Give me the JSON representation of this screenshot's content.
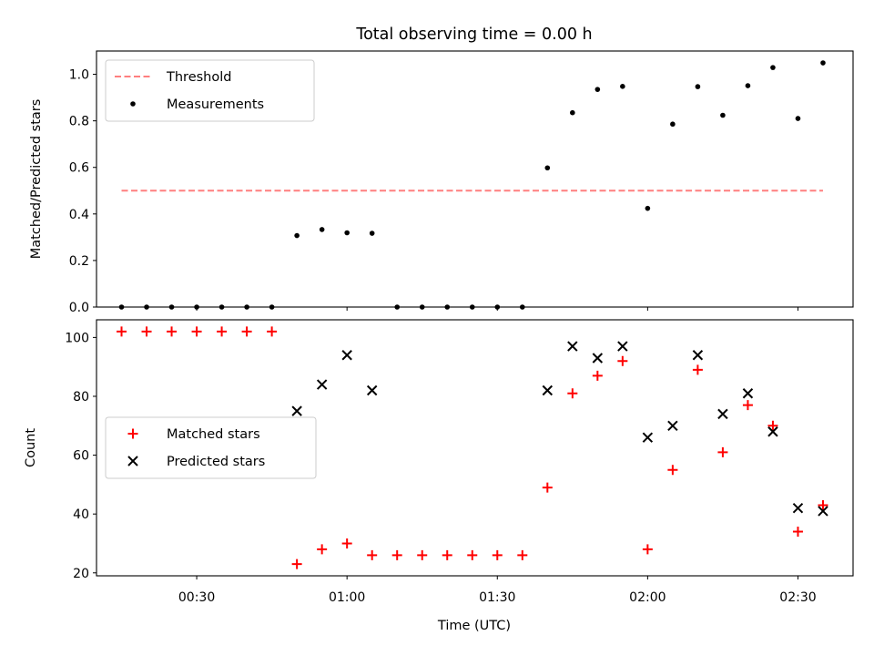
{
  "figure": {
    "title": "Total observing time = 0.00 h",
    "xlabel": "Time (UTC)"
  },
  "chart_data": [
    {
      "type": "scatter",
      "ylabel": "Matched/Predicted stars",
      "ylim": [
        0,
        1.1
      ],
      "yticks": [
        0.0,
        0.2,
        0.4,
        0.6,
        0.8,
        1.0
      ],
      "ytick_labels": [
        "0.0",
        "0.2",
        "0.4",
        "0.6",
        "0.8",
        "1.0"
      ],
      "x_range": [
        "00:10",
        "02:41"
      ],
      "legend": "upper-left",
      "series": [
        {
          "name": "Threshold",
          "kind": "dashed-line",
          "color": "#ff7f7f",
          "x": [
            "00:15",
            "02:35"
          ],
          "y": [
            0.5,
            0.5
          ]
        },
        {
          "name": "Measurements",
          "kind": "dot",
          "color": "#000000",
          "x": [
            "00:15",
            "00:20",
            "00:25",
            "00:30",
            "00:35",
            "00:40",
            "00:45",
            "00:50",
            "00:55",
            "01:00",
            "01:05",
            "01:10",
            "01:15",
            "01:20",
            "01:25",
            "01:30",
            "01:35",
            "01:40",
            "01:45",
            "01:50",
            "01:55",
            "02:00",
            "02:05",
            "02:10",
            "02:15",
            "02:20",
            "02:25",
            "02:30",
            "02:35"
          ],
          "y": [
            0,
            0,
            0,
            0,
            0,
            0,
            0,
            0.307,
            0.333,
            0.319,
            0.317,
            0,
            0,
            0,
            0,
            0,
            0,
            0.598,
            0.835,
            0.935,
            0.948,
            0.424,
            0.786,
            0.947,
            0.824,
            0.951,
            1.029,
            0.81,
            1.049
          ]
        }
      ]
    },
    {
      "type": "scatter",
      "ylabel": "Count",
      "ylim": [
        19,
        106
      ],
      "yticks": [
        20,
        40,
        60,
        80,
        100
      ],
      "ytick_labels": [
        "20",
        "40",
        "60",
        "80",
        "100"
      ],
      "x_range": [
        "00:10",
        "02:41"
      ],
      "xticks": [
        "00:30",
        "01:00",
        "01:30",
        "02:00",
        "02:30"
      ],
      "legend": "center-left",
      "series": [
        {
          "name": "Matched stars",
          "kind": "plus",
          "color": "#ff0000",
          "x": [
            "00:15",
            "00:20",
            "00:25",
            "00:30",
            "00:35",
            "00:40",
            "00:45",
            "00:50",
            "00:55",
            "01:00",
            "01:05",
            "01:10",
            "01:15",
            "01:20",
            "01:25",
            "01:30",
            "01:35",
            "01:40",
            "01:45",
            "01:50",
            "01:55",
            "02:00",
            "02:05",
            "02:10",
            "02:15",
            "02:20",
            "02:25",
            "02:30",
            "02:35"
          ],
          "y": [
            102,
            102,
            102,
            102,
            102,
            102,
            102,
            23,
            28,
            30,
            26,
            26,
            26,
            26,
            26,
            26,
            26,
            49,
            81,
            87,
            92,
            28,
            55,
            89,
            61,
            77,
            70,
            34,
            43
          ]
        },
        {
          "name": "Predicted stars",
          "kind": "cross",
          "color": "#000000",
          "x": [
            "00:50",
            "00:55",
            "01:00",
            "01:05",
            "01:40",
            "01:45",
            "01:50",
            "01:55",
            "02:00",
            "02:05",
            "02:10",
            "02:15",
            "02:20",
            "02:25",
            "02:30",
            "02:35"
          ],
          "y": [
            75,
            84,
            94,
            82,
            82,
            97,
            93,
            97,
            66,
            70,
            94,
            74,
            81,
            68,
            42,
            41
          ]
        }
      ]
    }
  ]
}
